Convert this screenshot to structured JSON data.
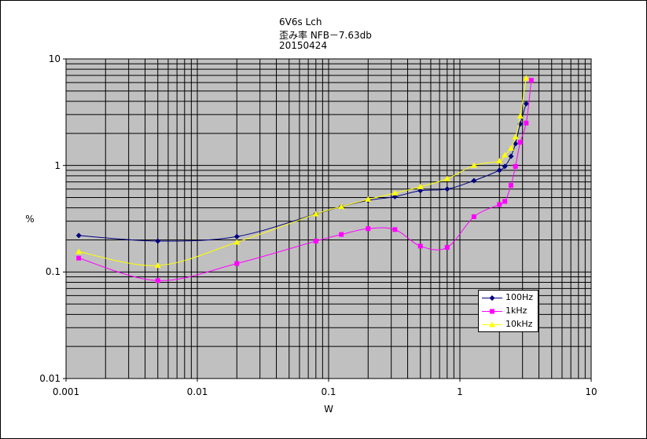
{
  "chart_data": {
    "type": "line",
    "title_lines": [
      "6V6s Lch",
      "歪み率 NFB－7.63db",
      "20150424"
    ],
    "xlabel": "W",
    "ylabel": "%",
    "xscale": "log",
    "yscale": "log",
    "xlim": [
      0.001,
      10
    ],
    "ylim": [
      0.01,
      10
    ],
    "x_ticks": [
      "0.001",
      "0.01",
      "0.1",
      "1",
      "10"
    ],
    "y_ticks": [
      "10",
      "1",
      "0.1",
      "0.01"
    ],
    "grid": true,
    "legend_position": "bottom-right",
    "plot_background": "#c0c0c0",
    "series": [
      {
        "name": "100Hz",
        "color": "#000080",
        "marker": "diamond",
        "points": [
          [
            0.00125,
            0.22
          ],
          [
            0.005,
            0.195
          ],
          [
            0.02,
            0.215
          ],
          [
            0.08,
            0.35
          ],
          [
            0.125,
            0.41
          ],
          [
            0.2,
            0.47
          ],
          [
            0.32,
            0.51
          ],
          [
            0.5,
            0.58
          ],
          [
            0.8,
            0.6
          ],
          [
            1.28,
            0.72
          ],
          [
            2.0,
            0.9
          ],
          [
            2.2,
            0.98
          ],
          [
            2.45,
            1.22
          ],
          [
            2.65,
            1.6
          ],
          [
            2.88,
            2.45
          ],
          [
            3.2,
            3.8
          ]
        ]
      },
      {
        "name": "1kHz",
        "color": "#ff00ff",
        "marker": "square",
        "points": [
          [
            0.00125,
            0.135
          ],
          [
            0.005,
            0.083
          ],
          [
            0.02,
            0.12
          ],
          [
            0.08,
            0.195
          ],
          [
            0.125,
            0.225
          ],
          [
            0.2,
            0.255
          ],
          [
            0.32,
            0.25
          ],
          [
            0.5,
            0.175
          ],
          [
            0.8,
            0.17
          ],
          [
            1.28,
            0.33
          ],
          [
            2.0,
            0.43
          ],
          [
            2.2,
            0.46
          ],
          [
            2.45,
            0.65
          ],
          [
            2.65,
            0.98
          ],
          [
            2.88,
            1.65
          ],
          [
            3.2,
            2.5
          ],
          [
            3.5,
            6.3
          ]
        ]
      },
      {
        "name": "10kHz",
        "color": "#ffff00",
        "marker": "triangle",
        "points": [
          [
            0.00125,
            0.155
          ],
          [
            0.005,
            0.115
          ],
          [
            0.02,
            0.19
          ],
          [
            0.08,
            0.35
          ],
          [
            0.125,
            0.41
          ],
          [
            0.2,
            0.48
          ],
          [
            0.32,
            0.55
          ],
          [
            0.5,
            0.63
          ],
          [
            0.8,
            0.75
          ],
          [
            1.28,
            1.0
          ],
          [
            2.0,
            1.1
          ],
          [
            2.2,
            1.25
          ],
          [
            2.45,
            1.45
          ],
          [
            2.65,
            1.85
          ],
          [
            2.88,
            2.9
          ],
          [
            3.2,
            6.6
          ]
        ]
      }
    ]
  }
}
